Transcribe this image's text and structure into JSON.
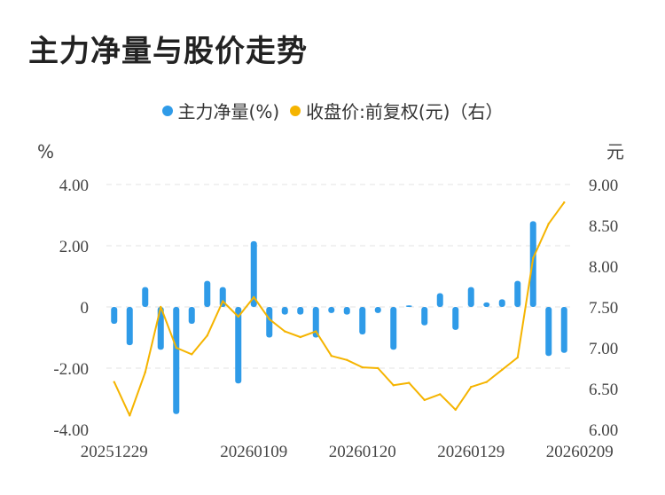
{
  "title": "主力净量与股价走势",
  "chart_data": {
    "type": "bar+line",
    "left_axis_unit": "%",
    "right_axis_unit": "元",
    "left_ticks": [
      "4.00",
      "2.00",
      "0",
      "-2.00",
      "-4.00"
    ],
    "right_ticks": [
      "9.00",
      "8.50",
      "8.00",
      "7.50",
      "7.00",
      "6.50",
      "6.00"
    ],
    "left_ylim": [
      -4,
      4
    ],
    "right_ylim": [
      6,
      9
    ],
    "x_tick_labels": [
      "20251229",
      "20260109",
      "20260120",
      "20260129",
      "20260209"
    ],
    "x_tick_indices": [
      0,
      9,
      16,
      23,
      30
    ],
    "legend": [
      {
        "name": "主力净量(%)",
        "color": "#2f9be8"
      },
      {
        "name": "收盘价:前复权(元)（右）",
        "color": "#f5b400"
      }
    ],
    "series": [
      {
        "name": "主力净量(%)",
        "type": "bar",
        "axis": "left",
        "color": "#2f9be8",
        "values": [
          -0.55,
          -1.25,
          0.65,
          -1.4,
          -3.5,
          -0.55,
          0.85,
          0.65,
          -2.5,
          2.15,
          -1.0,
          -0.25,
          -0.25,
          -1.0,
          -0.2,
          -0.25,
          -0.9,
          -0.2,
          -1.4,
          0.05,
          -0.6,
          0.45,
          -0.75,
          0.65,
          0.15,
          0.25,
          0.85,
          2.8,
          -1.6,
          -1.5
        ]
      },
      {
        "name": "收盘价:前复权(元)（右）",
        "type": "line",
        "axis": "right",
        "color": "#f5b400",
        "values": [
          6.58,
          6.17,
          6.7,
          7.5,
          7.0,
          6.92,
          7.15,
          7.57,
          7.38,
          7.62,
          7.35,
          7.2,
          7.13,
          7.2,
          6.9,
          6.85,
          6.76,
          6.75,
          6.54,
          6.57,
          6.36,
          6.43,
          6.24,
          6.52,
          6.58,
          6.73,
          6.88,
          8.1,
          8.52,
          8.78
        ]
      }
    ]
  }
}
